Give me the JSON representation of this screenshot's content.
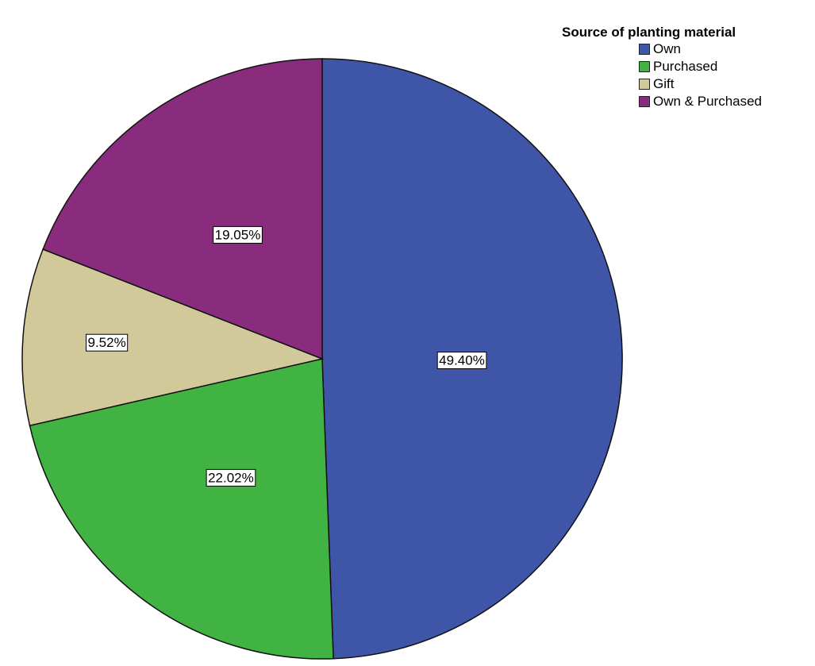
{
  "chart_data": {
    "type": "pie",
    "legend_title": "Source of planting material",
    "legend_position": "top-right",
    "slices": [
      {
        "label": "Own",
        "value": 49.4,
        "display": "49.40%",
        "color": "#3f56a8"
      },
      {
        "label": "Purchased",
        "value": 22.02,
        "display": "22.02%",
        "color": "#41b342"
      },
      {
        "label": "Gift",
        "value": 9.52,
        "display": "9.52%",
        "color": "#d2c99a"
      },
      {
        "label": "Own & Purchased",
        "value": 19.05,
        "display": "19.05%",
        "color": "#8a2c7e"
      }
    ]
  }
}
